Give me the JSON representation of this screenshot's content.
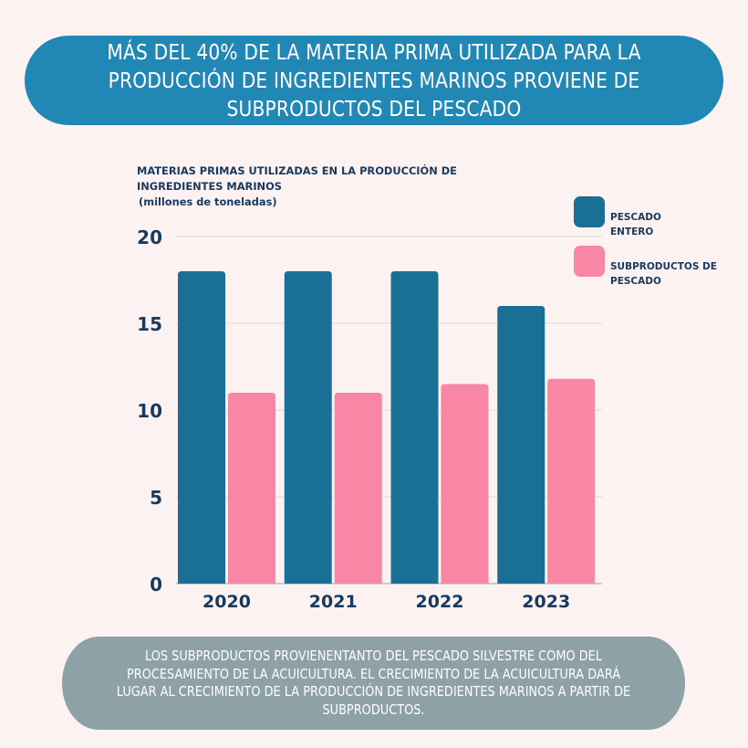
{
  "header": {
    "title": "MÁS DEL 40% DE LA MATERIA PRIMA UTILIZADA PARA LA PRODUCCIÓN DE INGREDIENTES MARINOS PROVIENE DE SUBPRODUCTOS DEL PESCADO"
  },
  "chart_data": {
    "type": "bar",
    "title": "MATERIAS PRIMAS UTILIZADAS EN LA PRODUCCIÓN DE INGREDIENTES MARINOS",
    "unit": "(millones de toneladas)",
    "xlabel": "",
    "ylabel": "",
    "categories": [
      "2020",
      "2021",
      "2022",
      "2023"
    ],
    "series": [
      {
        "name": "PESCADO ENTERO",
        "color": "#1a7094",
        "values": [
          18,
          18,
          18,
          16
        ]
      },
      {
        "name": "SUBPRODUCTOS DE PESCADO",
        "color": "#f986a5",
        "values": [
          11,
          11,
          11.5,
          11.8
        ]
      }
    ],
    "ylim": [
      0,
      20
    ],
    "yticks": [
      0,
      5,
      10,
      15,
      20
    ],
    "grid": true,
    "legend_position": "top-right"
  },
  "footer": {
    "text": "LOS SUBPRODUCTOS PROVIENENTANTO DEL PESCADO SILVESTRE COMO DEL PROCESAMIENTO DE LA ACUICULTURA. EL CRECIMIENTO DE LA ACUICULTURA DARÁ LUGAR AL CRECIMIENTO DE LA PRODUCCIÓN DE INGREDIENTES MARINOS A PARTIR DE SUBPRODUCTOS."
  },
  "colors": {
    "background": "#fcf2f2",
    "title_pill": "#2188b6",
    "footer_pill": "#8da1a7",
    "text_dark": "#173a5e"
  }
}
